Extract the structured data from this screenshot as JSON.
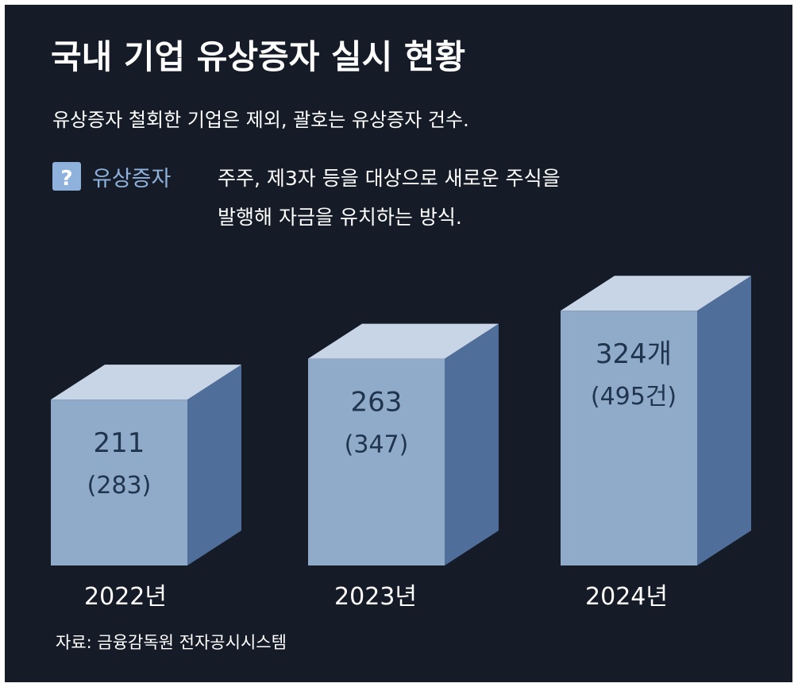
{
  "title": "국내 기업 유상증자 실시 현황",
  "subtitle": "유상증자 철회한 기업은 제외, 괄호는 유상증자 건수.",
  "definition": {
    "icon": "question-mark-icon",
    "icon_glyph": "?",
    "term": "유상증자",
    "text_line1": "주주, 제3자 등을 대상으로 새로운 주식을",
    "text_line2": "발행해 자금을 유치하는 방식."
  },
  "source": "자료: 금융감독원 전자공시시스템",
  "colors": {
    "background": "#161b28",
    "box_front": "#90aac9",
    "box_top": "#c8d5e6",
    "box_side": "#4f6e9a",
    "value_text": "#20354d",
    "term_text": "#8fb2dc"
  },
  "chart_data": {
    "type": "bar",
    "categories": [
      "2022년",
      "2023년",
      "2024년"
    ],
    "series": [
      {
        "values": [
          211,
          263,
          324
        ]
      },
      {
        "values": [
          283,
          347,
          495
        ]
      }
    ],
    "data_labels": [
      "211",
      "263",
      "324개"
    ],
    "data_sublabels": [
      "(283)",
      "(347)",
      "(495건)"
    ],
    "title": "국내 기업 유상증자 실시 현황"
  }
}
